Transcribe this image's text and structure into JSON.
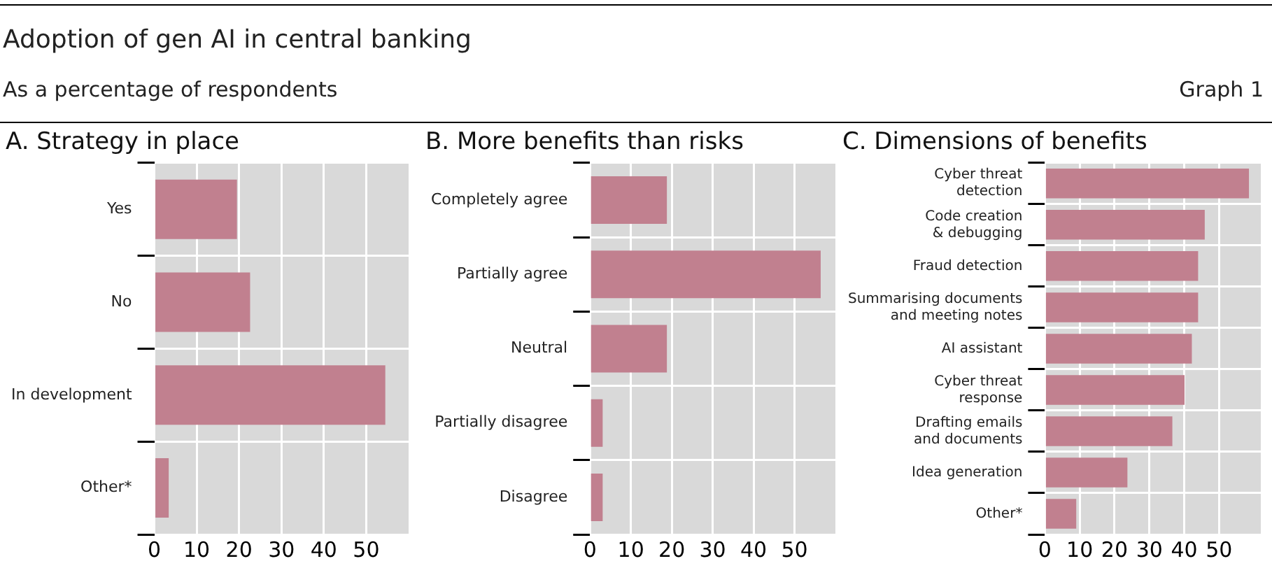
{
  "chart_data": [
    {
      "type": "bar",
      "orientation": "horizontal",
      "title": "A. Strategy in place",
      "annotations": [
        "Adoption of gen AI in central banking",
        "As a percentage of respondents",
        "Graph 1"
      ],
      "categories": [
        "Yes",
        "No",
        "In development",
        "Other*"
      ],
      "values": [
        19.5,
        22.6,
        54.5,
        3.4
      ],
      "color": "#c1808f",
      "xlim": [
        0,
        60
      ],
      "xticks": [
        0,
        10,
        20,
        30,
        40,
        50
      ],
      "grid": true
    },
    {
      "type": "bar",
      "orientation": "horizontal",
      "title": "B. More benefits than risks",
      "categories": [
        "Completely agree",
        "Partially agree",
        "Neutral",
        "Partially disagree",
        "Disagree"
      ],
      "values": [
        18.8,
        56.4,
        18.8,
        3.1,
        3.1
      ],
      "color": "#c1808f",
      "xlim": [
        0,
        60
      ],
      "xticks": [
        0,
        10,
        20,
        30,
        40,
        50
      ],
      "grid": true
    },
    {
      "type": "bar",
      "orientation": "horizontal",
      "title": "C. Dimensions of benefits",
      "categories": [
        "Cyber threat\ndetection",
        "Code creation\n& debugging",
        "Fraud detection",
        "Summarising documents\nand meeting notes",
        "AI assistant",
        "Cyber threat\nresponse",
        "Drafting emails\nand documents",
        "Idea generation",
        "Other*"
      ],
      "values": [
        58.6,
        45.9,
        44,
        44,
        42.2,
        40.1,
        36.6,
        23.7,
        9
      ],
      "color": "#c1808f",
      "xlim": [
        0,
        62
      ],
      "xticks": [
        0,
        10,
        20,
        30,
        40,
        50
      ],
      "grid": true
    }
  ]
}
